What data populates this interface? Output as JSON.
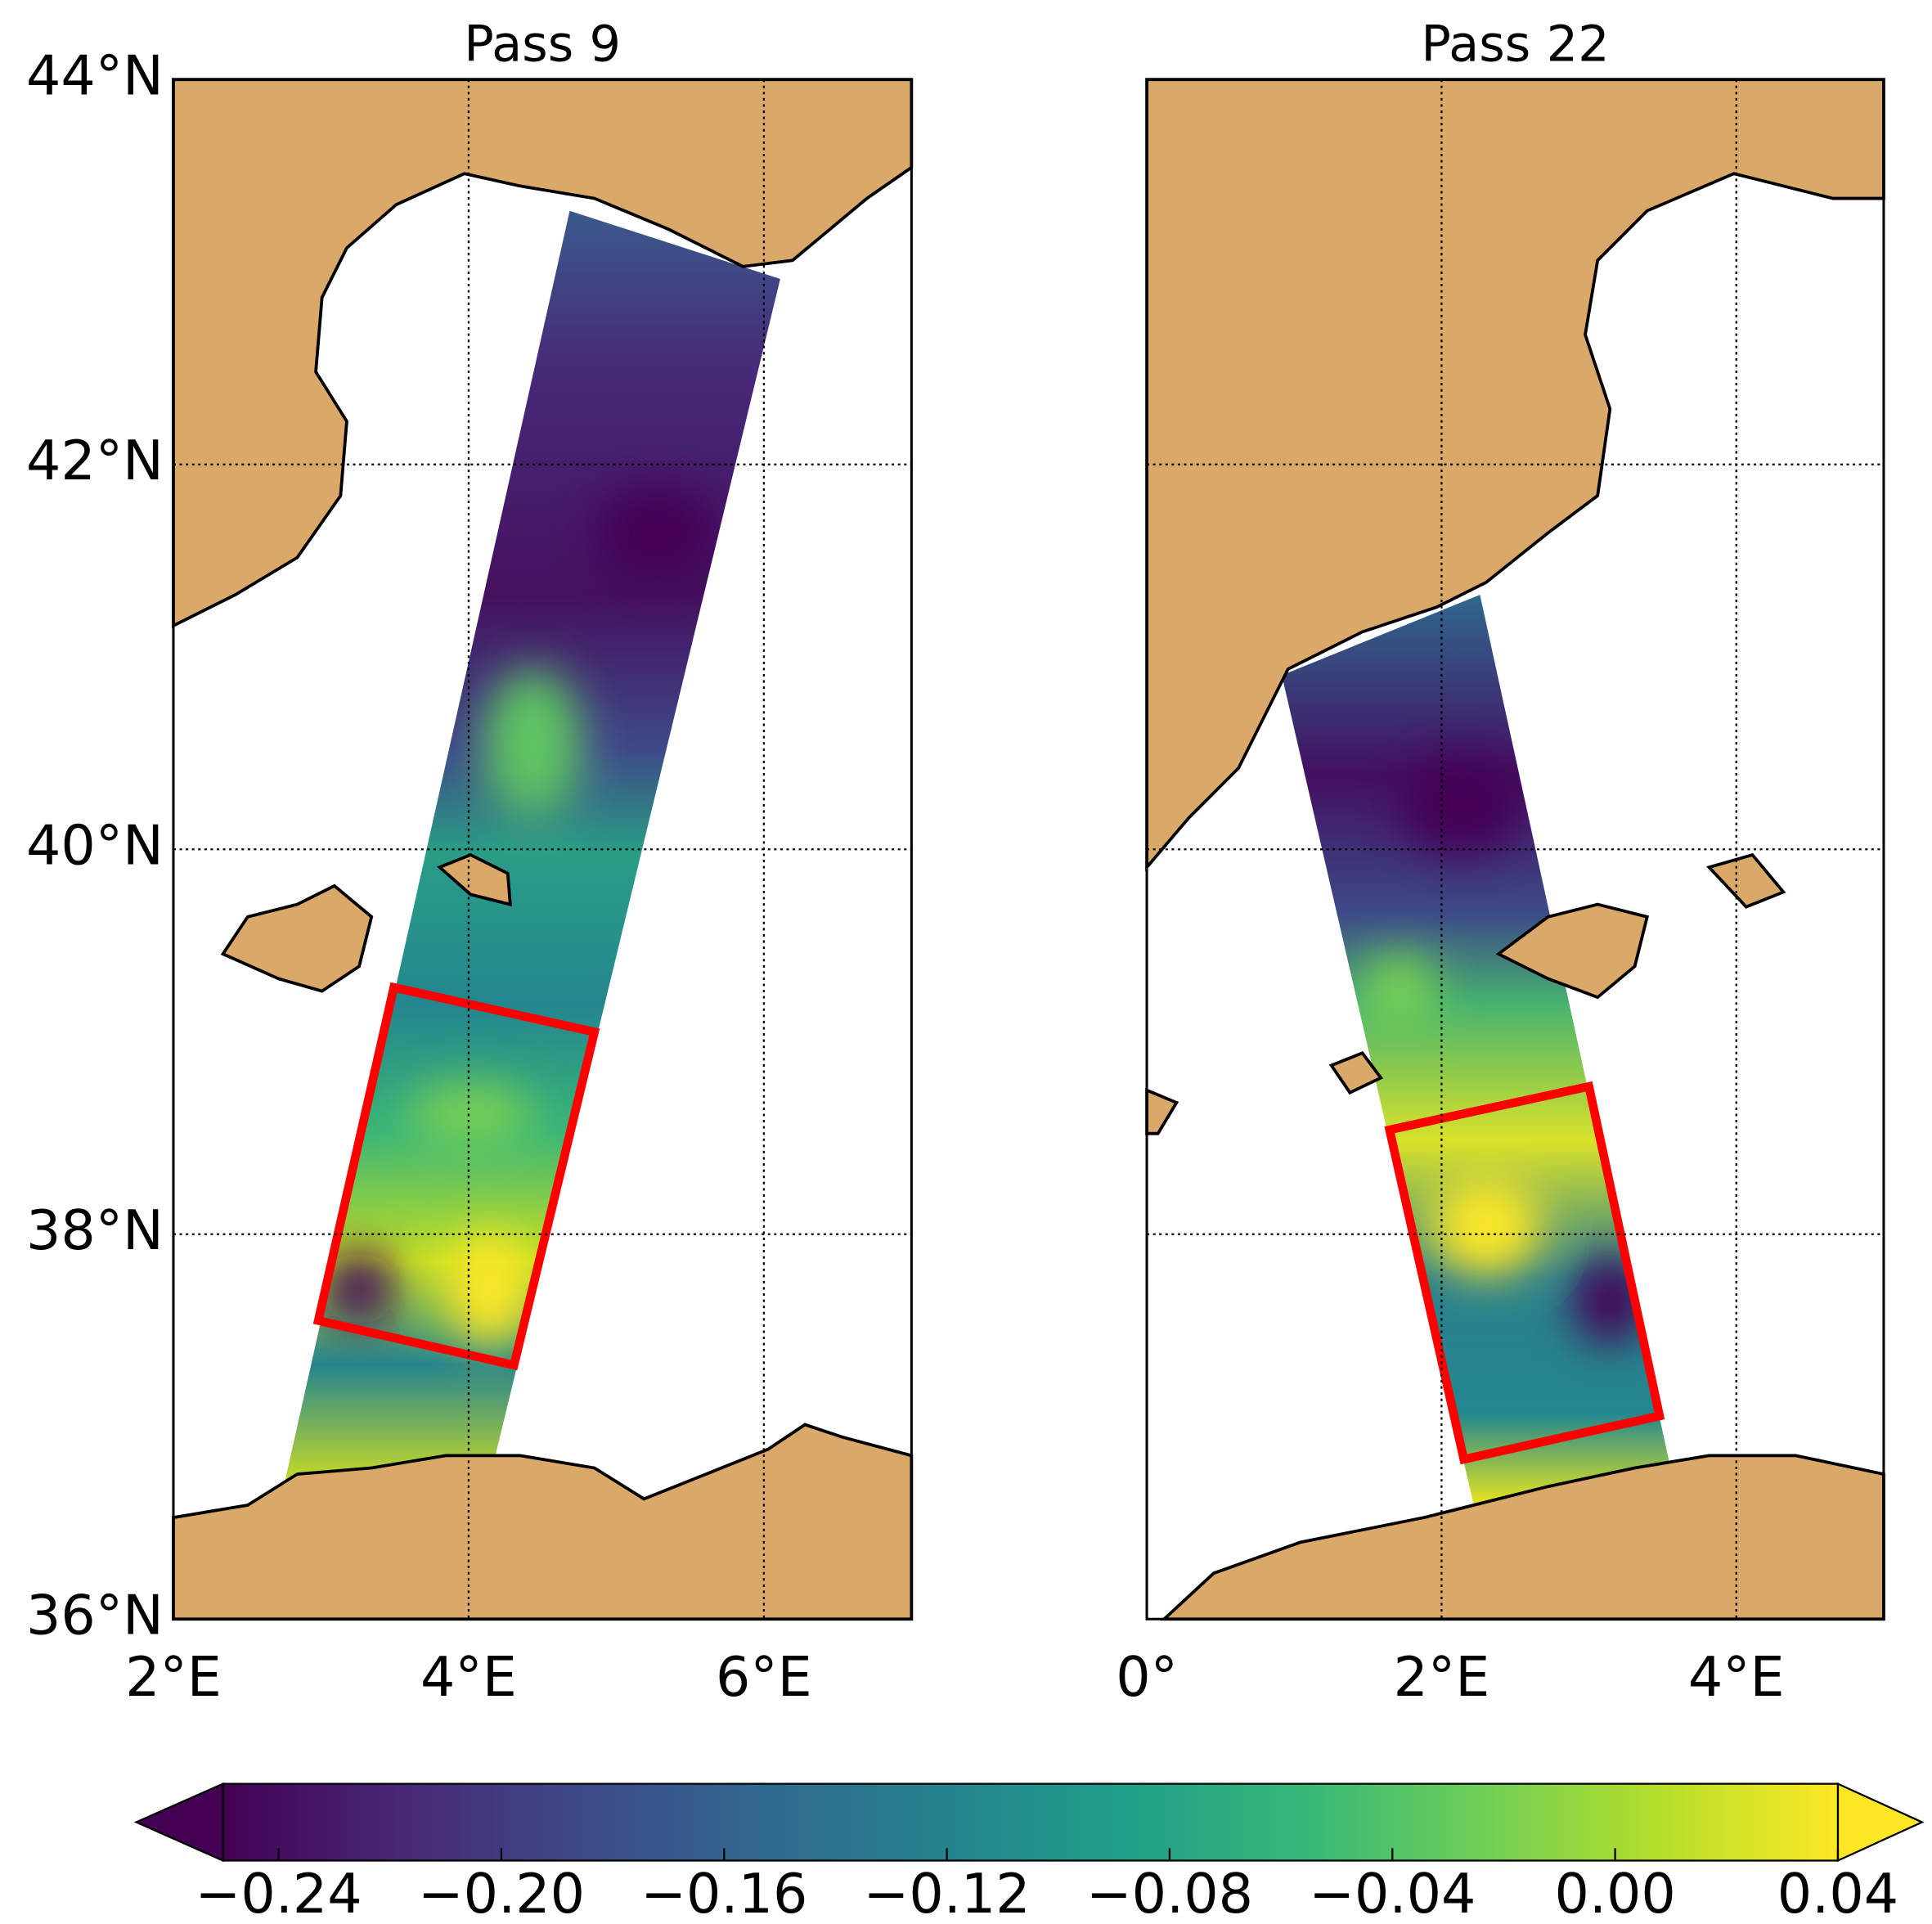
{
  "panels": [
    {
      "title": "Pass 9",
      "xlim": [
        2,
        7
      ],
      "ylim": [
        36,
        44
      ],
      "xticks": [
        {
          "value": 2,
          "label": "2°E"
        },
        {
          "value": 4,
          "label": "4°E"
        },
        {
          "value": 6,
          "label": "6°E"
        }
      ],
      "yticks": [
        {
          "value": 36,
          "label": "36°N"
        },
        {
          "value": 38,
          "label": "38°N"
        },
        {
          "value": 40,
          "label": "40°N"
        },
        {
          "value": 42,
          "label": "42°N"
        },
        {
          "value": 44,
          "label": "44°N"
        }
      ]
    },
    {
      "title": "Pass 22",
      "xlim": [
        0,
        5
      ],
      "ylim": [
        36,
        44
      ],
      "xticks": [
        {
          "value": 0,
          "label": "0°"
        },
        {
          "value": 2,
          "label": "2°E"
        },
        {
          "value": 4,
          "label": "4°E"
        }
      ],
      "yticks": [
        36,
        38,
        40,
        42,
        44
      ]
    }
  ],
  "colorbar": {
    "lim": [
      -0.25,
      0.04
    ],
    "ticks": [
      {
        "value": -0.24,
        "label": "−0.24"
      },
      {
        "value": -0.2,
        "label": "−0.20"
      },
      {
        "value": -0.16,
        "label": "−0.16"
      },
      {
        "value": -0.12,
        "label": "−0.12"
      },
      {
        "value": -0.08,
        "label": "−0.08"
      },
      {
        "value": -0.04,
        "label": "−0.04"
      },
      {
        "value": 0,
        "label": "0.00"
      },
      0.04
    ],
    "colormap": [
      "#440154",
      "#482878",
      "#3e4989",
      "#31688e",
      "#26828e",
      "#1f9e89",
      "#35b779",
      "#6ece58",
      "#b5de2b",
      "#fde725"
    ]
  },
  "land_color": "#daa96a",
  "box_color": "#ff0000"
}
